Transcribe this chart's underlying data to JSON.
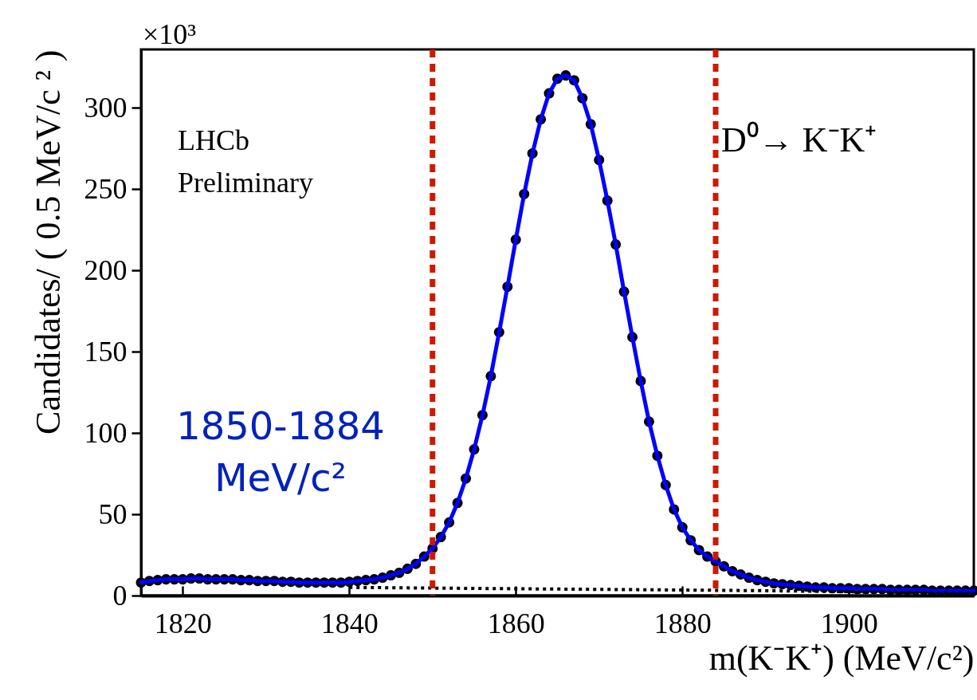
{
  "chart_data": {
    "type": "scatter",
    "xlabel": "m(K⁻K⁺) (MeV/c²)",
    "ylabel": "Candidates/ ( 0.5 MeV/c ² )",
    "annotations": [
      "×10³",
      "LHCb",
      "Preliminary",
      "D⁰→ K⁻K⁺",
      "1850-1884",
      "MeV/c²"
    ],
    "x": [
      1815,
      1816,
      1817,
      1818,
      1819,
      1820,
      1821,
      1822,
      1823,
      1824,
      1825,
      1826,
      1827,
      1828,
      1829,
      1830,
      1831,
      1832,
      1833,
      1834,
      1835,
      1836,
      1837,
      1838,
      1839,
      1840,
      1841,
      1842,
      1843,
      1844,
      1845,
      1846,
      1847,
      1848,
      1849,
      1850,
      1851,
      1852,
      1853,
      1854,
      1855,
      1856,
      1857,
      1858,
      1859,
      1860,
      1861,
      1862,
      1863,
      1864,
      1865,
      1866,
      1867,
      1868,
      1869,
      1870,
      1871,
      1872,
      1873,
      1874,
      1875,
      1876,
      1877,
      1878,
      1879,
      1880,
      1881,
      1882,
      1883,
      1884,
      1885,
      1886,
      1887,
      1888,
      1889,
      1890,
      1891,
      1892,
      1893,
      1894,
      1895,
      1896,
      1897,
      1898,
      1899,
      1900,
      1901,
      1902,
      1903,
      1904,
      1905,
      1906,
      1907,
      1908,
      1909,
      1910,
      1911,
      1912,
      1913,
      1914,
      1915
    ],
    "series": [
      {
        "color": "#000000",
        "marker": "circle",
        "values": [
          8,
          9,
          9.5,
          10,
          10,
          10,
          10.5,
          10.5,
          10,
          10,
          10,
          10,
          9.5,
          9.5,
          9,
          9,
          9,
          8.5,
          8.5,
          8,
          8,
          8,
          8,
          8,
          8,
          8.5,
          9,
          9.5,
          10,
          11,
          12.5,
          14,
          16.5,
          19.5,
          24,
          29,
          36,
          45,
          57,
          72,
          90,
          111,
          135,
          162,
          190,
          219,
          247,
          272,
          293,
          309,
          318,
          320,
          317,
          306,
          290,
          268,
          243,
          216,
          187,
          159,
          132,
          107,
          86,
          68,
          53,
          42,
          34,
          28,
          24,
          21,
          18,
          15,
          13,
          11,
          9.5,
          8.5,
          7.5,
          7,
          6.5,
          6,
          5.5,
          5,
          5,
          4.5,
          4.5,
          4.5,
          4,
          4,
          4,
          4,
          3.5,
          3.5,
          3.5,
          3.5,
          3.5,
          3,
          3,
          3,
          3,
          3,
          3
        ]
      },
      {
        "type": "line",
        "color": "#0000ff",
        "line_style": "solid",
        "values": [
          8,
          9,
          9.5,
          10,
          10,
          10,
          10.5,
          10.5,
          10,
          10,
          10,
          10,
          9.5,
          9.5,
          9,
          9,
          9,
          8.5,
          8.5,
          8,
          8,
          8,
          8,
          8,
          8,
          8.5,
          9,
          9.5,
          10,
          11,
          12.5,
          14,
          16.5,
          19.5,
          24,
          29,
          36,
          45,
          57,
          72,
          90,
          111,
          135,
          162,
          190,
          219,
          247,
          272,
          293,
          309,
          318,
          320,
          317,
          306,
          290,
          268,
          243,
          216,
          187,
          159,
          132,
          107,
          86,
          68,
          53,
          42,
          34,
          28,
          24,
          21,
          18,
          15,
          13,
          11,
          9.5,
          8.5,
          7.5,
          7,
          6.5,
          6,
          5.5,
          5,
          5,
          4.5,
          4.5,
          4.5,
          4,
          4,
          4,
          4,
          3.5,
          3.5,
          3.5,
          3.5,
          3.5,
          3,
          3,
          3,
          3,
          3,
          3
        ]
      },
      {
        "type": "line",
        "color": "#000000",
        "line_style": "dotted",
        "x": [
          1840,
          1865,
          1890,
          1915
        ],
        "values": [
          5,
          4,
          3,
          1.5
        ]
      }
    ],
    "ref_lines": [
      {
        "axis": "x",
        "value": 1850,
        "color": "#cc1a00",
        "line_style": "dashed"
      },
      {
        "axis": "x",
        "value": 1884,
        "color": "#cc1a00",
        "line_style": "dashed"
      }
    ],
    "xlim": [
      1815,
      1915
    ],
    "xticks": [
      1820,
      1840,
      1860,
      1880,
      1900
    ],
    "ylim": [
      0,
      336
    ],
    "yticks": [
      0,
      50,
      100,
      150,
      200,
      250,
      300
    ],
    "grid": false
  }
}
